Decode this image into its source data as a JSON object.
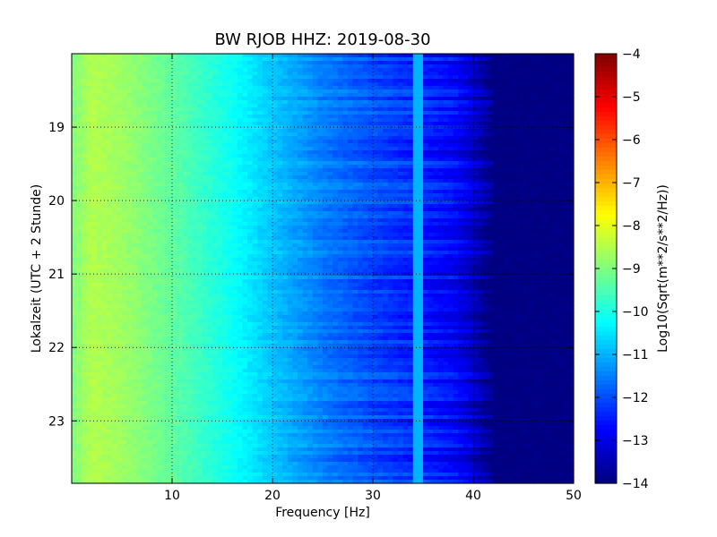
{
  "chart_data": {
    "type": "heatmap",
    "title": "BW RJOB HHZ: 2019-08-30",
    "xlabel": "Frequency [Hz]",
    "ylabel": "Lokalzeit (UTC + 2 Stunde)",
    "colorbar_label": "Log10(Sqrt(m**2/s**2/Hz))",
    "xlim": [
      0,
      50
    ],
    "ylim": [
      18.0,
      23.85
    ],
    "y_inverted": true,
    "clim": [
      -14,
      -4
    ],
    "colormap": "jet",
    "grid": true,
    "x_ticks": [
      10,
      20,
      30,
      40,
      50
    ],
    "x_tick_labels": [
      "10",
      "20",
      "30",
      "40",
      "50"
    ],
    "y_ticks": [
      19,
      20,
      21,
      22,
      23
    ],
    "y_tick_labels": [
      "19",
      "20",
      "21",
      "22",
      "23"
    ],
    "colorbar_ticks": [
      -4,
      -5,
      -6,
      -7,
      -8,
      -9,
      -10,
      -11,
      -12,
      -13,
      -14
    ],
    "colorbar_tick_labels": [
      "−4",
      "−5",
      "−6",
      "−7",
      "−8",
      "−9",
      "−10",
      "−11",
      "−12",
      "−13",
      "−14"
    ],
    "spectrum_profile": {
      "frequency_hz": [
        0,
        2,
        5,
        10,
        15,
        20,
        25,
        30,
        35,
        38,
        40,
        42,
        50
      ],
      "log10_psd": [
        -9.0,
        -8.5,
        -8.7,
        -9.3,
        -10.0,
        -10.8,
        -11.5,
        -12.0,
        -12.4,
        -12.7,
        -13.2,
        -14.0,
        -14.0
      ]
    },
    "spectral_line": {
      "frequency_hz": 34.5,
      "log10_psd": -11.0
    }
  }
}
